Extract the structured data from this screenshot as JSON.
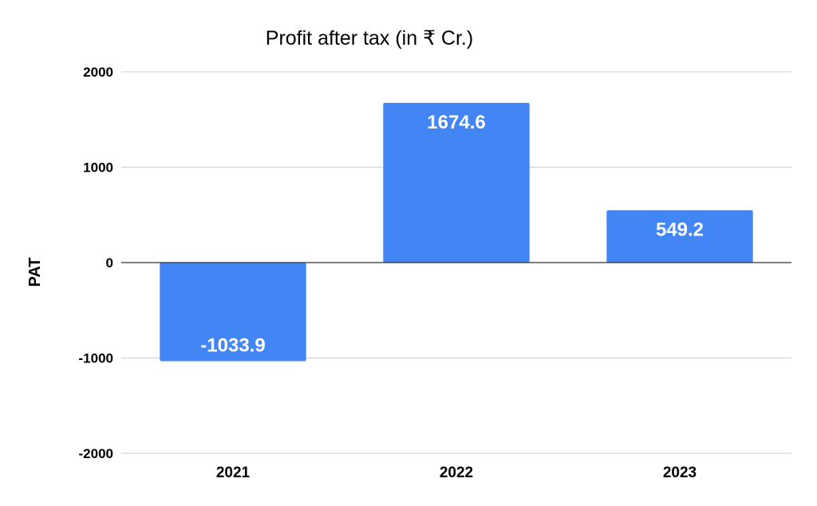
{
  "chart_data": {
    "type": "bar",
    "title": "Profit after tax (in ₹ Cr.)",
    "xlabel": "",
    "ylabel": "PAT",
    "categories": [
      "2021",
      "2022",
      "2023"
    ],
    "values": [
      -1033.9,
      1674.6,
      549.2
    ],
    "data_labels": [
      "-1033.9",
      "1674.6",
      "549.2"
    ],
    "ylim": [
      -2000,
      2000
    ],
    "yticks": [
      2000,
      1000,
      0,
      -1000,
      -2000
    ],
    "ytick_labels": [
      "2000",
      "1000",
      "0",
      "-1000",
      "-2000"
    ],
    "grid": true,
    "legend": "none",
    "bar_color": "#4285f4"
  }
}
